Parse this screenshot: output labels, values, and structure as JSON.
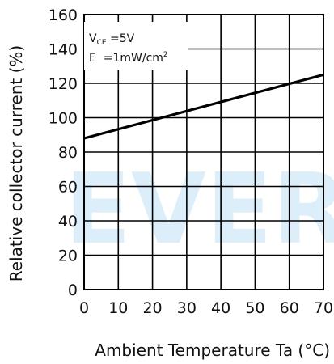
{
  "chart_data": {
    "type": "line",
    "xlabel": "Ambient Temperature  Ta  (°C)",
    "ylabel": "Relative collector current  (%)",
    "xlim": [
      0,
      70
    ],
    "ylim": [
      0,
      160
    ],
    "xticks": [
      0,
      10,
      20,
      30,
      40,
      50,
      60,
      70
    ],
    "yticks": [
      0,
      20,
      40,
      60,
      80,
      100,
      120,
      140,
      160
    ],
    "grid": true,
    "conditions": [
      "VCE =5V",
      "E =1mW/cm²"
    ],
    "series": [
      {
        "x": [
          0,
          70
        ],
        "y": [
          88,
          125
        ]
      }
    ],
    "watermark": "EVER"
  }
}
